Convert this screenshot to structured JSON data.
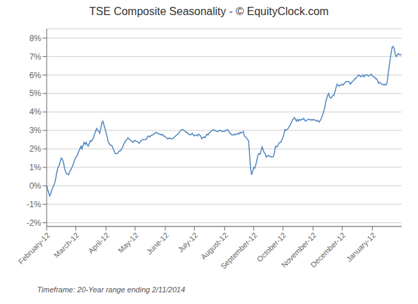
{
  "chart_data": {
    "type": "line",
    "title": "TSE Composite Seasonality  -  © EquityClock.com",
    "subtitle": "Timeframe: 20-Year range ending 2/11/2014",
    "color": "#4f86c0",
    "grid": true,
    "ylim": [
      -0.022,
      0.085
    ],
    "yticks": [
      {
        "value": -0.02,
        "label": "-2%"
      },
      {
        "value": -0.01,
        "label": "-1%"
      },
      {
        "value": 0.0,
        "label": "0%"
      },
      {
        "value": 0.01,
        "label": "1%"
      },
      {
        "value": 0.02,
        "label": "2%"
      },
      {
        "value": 0.03,
        "label": "3%"
      },
      {
        "value": 0.04,
        "label": "4%"
      },
      {
        "value": 0.05,
        "label": "5%"
      },
      {
        "value": 0.06,
        "label": "6%"
      },
      {
        "value": 0.07,
        "label": "7%"
      },
      {
        "value": 0.08,
        "label": "8%"
      }
    ],
    "categories": [
      "February-12",
      null,
      null,
      null,
      null,
      null,
      null,
      null,
      null,
      null,
      null,
      null,
      null,
      null,
      null,
      null,
      null,
      null,
      null,
      null,
      null,
      null,
      null,
      null,
      null,
      null,
      null,
      null,
      "March-12",
      null,
      null,
      null,
      null,
      null,
      null,
      null,
      null,
      null,
      null,
      null,
      null,
      null,
      null,
      null,
      null,
      null,
      null,
      null,
      null,
      null,
      null,
      null,
      null,
      null,
      null,
      null,
      null,
      "April-12",
      null,
      null,
      null,
      null,
      null,
      null,
      null,
      null,
      null,
      null,
      null,
      null,
      null,
      null,
      null,
      null,
      null,
      null,
      null,
      null,
      null,
      null,
      null,
      null,
      null,
      null,
      null,
      "May-12",
      null,
      null,
      null,
      null,
      null,
      null,
      null,
      null,
      null,
      null,
      null,
      null,
      null,
      null,
      null,
      null,
      null,
      null,
      null,
      null,
      null,
      null,
      null,
      null,
      null,
      null,
      null,
      null,
      "June-12",
      null,
      null,
      null,
      null,
      null,
      null,
      null,
      null,
      null,
      null,
      null,
      null,
      null,
      null,
      null,
      null,
      null,
      null,
      null,
      null,
      null,
      null,
      null,
      null,
      null,
      null,
      null,
      "July-12",
      null,
      null,
      null,
      null,
      null,
      null,
      null,
      null,
      null,
      null,
      null,
      null,
      null,
      null,
      null,
      null,
      null,
      null,
      null,
      null,
      null,
      null,
      null,
      null,
      null,
      null,
      null,
      null,
      "August-12",
      null,
      null,
      null,
      null,
      null,
      null,
      null,
      null,
      null,
      null,
      null,
      null,
      null,
      null,
      null,
      null,
      null,
      null,
      null,
      null,
      null,
      null,
      null,
      null,
      null,
      null,
      null,
      "September-12",
      null,
      null,
      null,
      null,
      null,
      null,
      null,
      null,
      null,
      null,
      null,
      null,
      null,
      null,
      null,
      null,
      null,
      null,
      null,
      null,
      null,
      null,
      null,
      null,
      null,
      null,
      null,
      "October-12",
      null,
      null,
      null,
      null,
      null,
      null,
      null,
      null,
      null,
      null,
      null,
      null,
      null,
      null,
      null,
      null,
      null,
      null,
      null,
      null,
      null,
      null,
      null,
      null,
      null,
      null,
      null,
      null,
      "November-12",
      null,
      null,
      null,
      null,
      null,
      null,
      null,
      null,
      null,
      null,
      null,
      null,
      null,
      null,
      null,
      null,
      null,
      null,
      null,
      null,
      null,
      null,
      null,
      null,
      null,
      null,
      null,
      "December-12",
      null,
      null,
      null,
      null,
      null,
      null,
      null,
      null,
      null,
      null,
      null,
      null,
      null,
      null,
      null,
      null,
      null,
      null,
      null,
      null,
      null,
      null,
      null,
      null,
      null,
      null,
      null,
      null,
      "January-12",
      null,
      null,
      null,
      null,
      null,
      null,
      null,
      null,
      null,
      null,
      null,
      null,
      null,
      null,
      null,
      null,
      null,
      null,
      null,
      null,
      null,
      null,
      null,
      null,
      null,
      null,
      null,
      null
    ],
    "values": [
      0.0,
      -0.002,
      -0.004,
      -0.0055,
      -0.004,
      -0.002,
      -0.001,
      0.0005,
      0.002,
      0.005,
      0.008,
      0.01,
      0.011,
      0.013,
      0.015,
      0.0145,
      0.013,
      0.01,
      0.008,
      0.0065,
      0.0065,
      0.006,
      0.0075,
      0.0085,
      0.0095,
      0.011,
      0.0125,
      0.014,
      0.0155,
      0.016,
      0.0175,
      0.019,
      0.02,
      0.0215,
      0.02,
      0.022,
      0.0235,
      0.0225,
      0.0235,
      0.022,
      0.0215,
      0.023,
      0.0245,
      0.024,
      0.025,
      0.026,
      0.028,
      0.0295,
      0.031,
      0.03,
      0.0295,
      0.0285,
      0.031,
      0.034,
      0.035,
      0.033,
      0.031,
      0.029,
      0.0265,
      0.024,
      0.023,
      0.022,
      0.022,
      0.0215,
      0.02,
      0.0185,
      0.0175,
      0.0175,
      0.0175,
      0.0185,
      0.019,
      0.019,
      0.02,
      0.021,
      0.0225,
      0.0235,
      0.0245,
      0.025,
      0.026,
      0.0255,
      0.025,
      0.0245,
      0.024,
      0.0235,
      0.0245,
      0.0245,
      0.024,
      0.024,
      0.0235,
      0.023,
      0.024,
      0.0245,
      0.025,
      0.025,
      0.025,
      0.025,
      0.0255,
      0.0265,
      0.027,
      0.0265,
      0.027,
      0.0275,
      0.0275,
      0.028,
      0.0285,
      0.029,
      0.0285,
      0.0285,
      0.028,
      0.028,
      0.0275,
      0.028,
      0.027,
      0.027,
      0.0265,
      0.026,
      0.0255,
      0.0255,
      0.026,
      0.0255,
      0.0255,
      0.0255,
      0.026,
      0.0265,
      0.027,
      0.0275,
      0.028,
      0.0285,
      0.0295,
      0.03,
      0.0305,
      0.0305,
      0.03,
      0.0295,
      0.029,
      0.029,
      0.028,
      0.028,
      0.0275,
      0.028,
      0.0285,
      0.0275,
      0.027,
      0.0275,
      0.0275,
      0.027,
      0.028,
      0.0275,
      0.027,
      0.0255,
      0.026,
      0.0265,
      0.026,
      0.027,
      0.028,
      0.0275,
      0.0285,
      0.029,
      0.0295,
      0.03,
      0.0305,
      0.03,
      0.03,
      0.0295,
      0.0295,
      0.0295,
      0.03,
      0.03,
      0.0295,
      0.0295,
      0.0295,
      0.0295,
      0.03,
      0.03,
      0.0305,
      0.0295,
      0.0285,
      0.028,
      0.0275,
      0.0275,
      0.028,
      0.0275,
      0.028,
      0.028,
      0.0285,
      0.028,
      0.029,
      0.0285,
      0.029,
      0.0295,
      0.027,
      0.0265,
      0.026,
      0.025,
      0.0245,
      0.017,
      0.009,
      0.006,
      0.008,
      0.01,
      0.0095,
      0.0115,
      0.014,
      0.0165,
      0.0175,
      0.017,
      0.019,
      0.021,
      0.0195,
      0.018,
      0.0175,
      0.0155,
      0.016,
      0.0165,
      0.016,
      0.016,
      0.0155,
      0.0155,
      0.016,
      0.0185,
      0.0215,
      0.021,
      0.0215,
      0.023,
      0.0235,
      0.0235,
      0.025,
      0.026,
      0.028,
      0.0305,
      0.03,
      0.0305,
      0.031,
      0.032,
      0.033,
      0.034,
      0.0355,
      0.036,
      0.037,
      0.036,
      0.035,
      0.036,
      0.035,
      0.036,
      0.0355,
      0.036,
      0.036,
      0.0365,
      0.0355,
      0.035,
      0.0355,
      0.036,
      0.036,
      0.036,
      0.0355,
      0.036,
      0.0355,
      0.036,
      0.0355,
      0.035,
      0.0355,
      0.035,
      0.0345,
      0.0355,
      0.0365,
      0.038,
      0.04,
      0.042,
      0.045,
      0.047,
      0.049,
      0.05,
      0.048,
      0.0475,
      0.048,
      0.049,
      0.049,
      0.051,
      0.053,
      0.055,
      0.0545,
      0.054,
      0.0545,
      0.0545,
      0.055,
      0.0545,
      0.0555,
      0.056,
      0.0565,
      0.0565,
      0.0565,
      0.056,
      0.055,
      0.056,
      0.0565,
      0.057,
      0.058,
      0.058,
      0.059,
      0.0595,
      0.06,
      0.0595,
      0.059,
      0.0595,
      0.06,
      0.059,
      0.06,
      0.06,
      0.06,
      0.0595,
      0.0595,
      0.06,
      0.0605,
      0.0595,
      0.059,
      0.059,
      0.058,
      0.058,
      0.057,
      0.0555,
      0.056,
      0.0555,
      0.055,
      0.055,
      0.0545,
      0.055,
      0.0545,
      0.0555,
      0.06,
      0.064,
      0.068,
      0.072,
      0.075,
      0.0755,
      0.074,
      0.071,
      0.07,
      0.071,
      0.0715,
      0.071,
      0.071,
      0.071
    ]
  }
}
